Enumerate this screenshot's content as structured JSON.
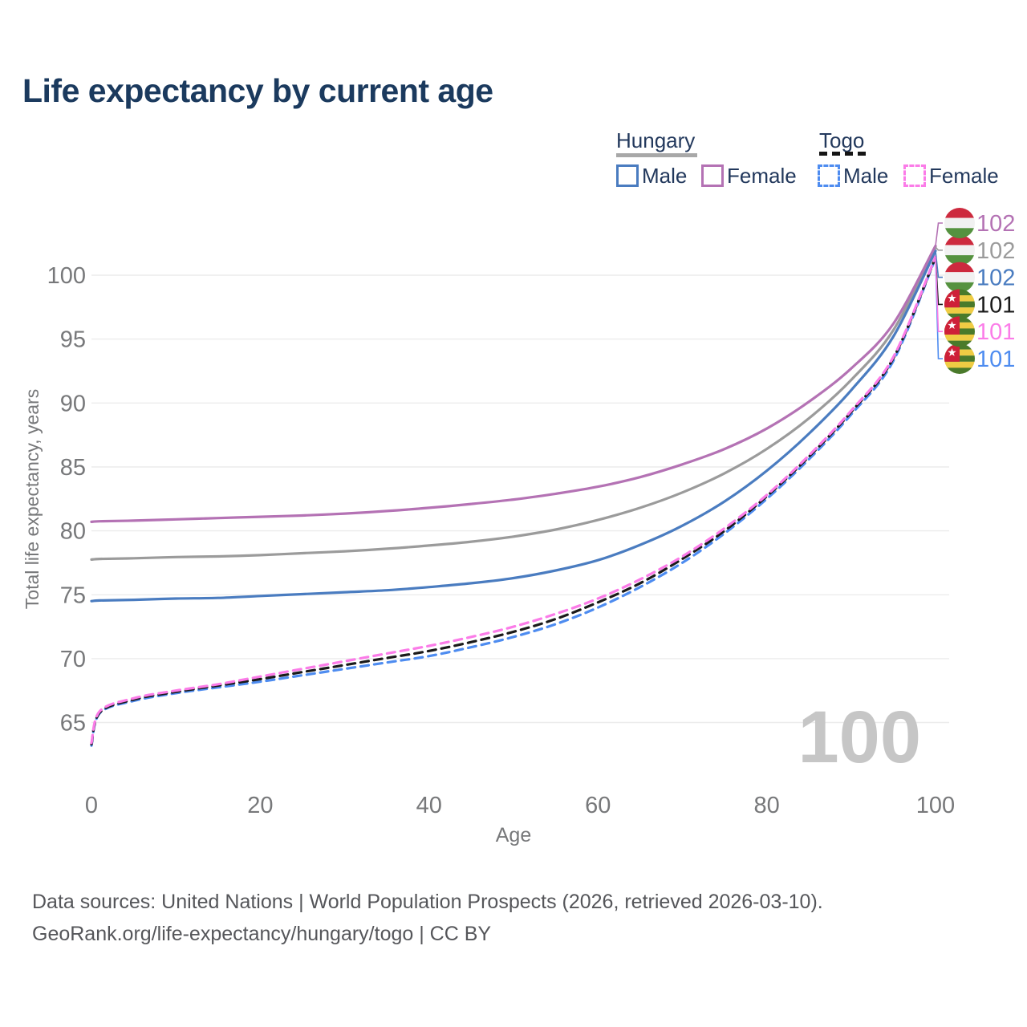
{
  "title": "Life expectancy by current age",
  "watermark": "100",
  "legend": {
    "groups": [
      {
        "name": "Hungary",
        "line_style": "solid",
        "underline_color": "#a8a8a8",
        "items": [
          {
            "label": "Male",
            "color": "#4a7cc0"
          },
          {
            "label": "Female",
            "color": "#b472b4"
          }
        ]
      },
      {
        "name": "Togo",
        "line_style": "dashed",
        "underline_color": "#151515",
        "items": [
          {
            "label": "Male",
            "color": "#4e8cf0"
          },
          {
            "label": "Female",
            "color": "#fb7ce8"
          }
        ]
      }
    ]
  },
  "footer": {
    "line1": "Data sources: United Nations | World Population Prospects (2026, retrieved 2026-03-10).",
    "line2": "GeoRank.org/life-expectancy/hungary/togo | CC BY"
  },
  "chart_data": {
    "type": "line",
    "title": "Life expectancy by current age",
    "xlabel": "Age",
    "ylabel": "Total life expectancy, years",
    "xlim": [
      0,
      100
    ],
    "ylim": [
      62,
      103
    ],
    "xticks": [
      0,
      20,
      40,
      60,
      80,
      100
    ],
    "yticks": [
      65,
      70,
      75,
      80,
      85,
      90,
      95,
      100
    ],
    "grid": "horizontal-only",
    "legend_position": "top-right",
    "ages": [
      0,
      1,
      5,
      10,
      15,
      20,
      25,
      30,
      35,
      40,
      45,
      50,
      55,
      60,
      65,
      70,
      75,
      80,
      85,
      90,
      95,
      100
    ],
    "series": [
      {
        "name": "Hungary Both sexes",
        "country": "Hungary",
        "sex": "Both",
        "color": "#9b9b9b",
        "dash": "solid",
        "flag": "hungary",
        "label_slot": 1,
        "end_label": "102",
        "values": [
          77.75,
          77.8,
          77.85,
          77.95,
          78.0,
          78.1,
          78.25,
          78.4,
          78.6,
          78.85,
          79.15,
          79.55,
          80.1,
          80.85,
          81.8,
          83.0,
          84.5,
          86.4,
          88.8,
          91.8,
          95.7,
          102.2
        ]
      },
      {
        "name": "Hungary Male",
        "country": "Hungary",
        "sex": "Male",
        "color": "#4a7cc0",
        "dash": "solid",
        "flag": "hungary",
        "label_slot": 2,
        "end_label": "102",
        "values": [
          74.5,
          74.55,
          74.6,
          74.7,
          74.75,
          74.9,
          75.05,
          75.2,
          75.35,
          75.6,
          75.9,
          76.3,
          76.9,
          77.7,
          78.9,
          80.4,
          82.3,
          84.7,
          87.6,
          91.0,
          95.2,
          101.9
        ]
      },
      {
        "name": "Hungary Female",
        "country": "Hungary",
        "sex": "Female",
        "color": "#b472b4",
        "dash": "solid",
        "flag": "hungary",
        "label_slot": 0,
        "end_label": "102",
        "values": [
          80.7,
          80.75,
          80.8,
          80.9,
          81.0,
          81.1,
          81.2,
          81.35,
          81.55,
          81.8,
          82.1,
          82.45,
          82.9,
          83.45,
          84.2,
          85.2,
          86.4,
          88.0,
          90.1,
          92.7,
          96.2,
          102.3
        ]
      },
      {
        "name": "Togo Male",
        "country": "Togo",
        "sex": "Male",
        "color": "#4e8cf0",
        "dash": "dashed",
        "flag": "togo",
        "label_slot": 5,
        "end_label": "101",
        "values": [
          63.2,
          65.75,
          66.7,
          67.3,
          67.75,
          68.2,
          68.7,
          69.2,
          69.7,
          70.2,
          70.9,
          71.7,
          72.7,
          74.0,
          75.6,
          77.5,
          79.8,
          82.5,
          85.6,
          89.1,
          93.3,
          101.35
        ]
      },
      {
        "name": "Togo Both sexes",
        "country": "Togo",
        "sex": "Both",
        "color": "#1a1a1a",
        "dash": "dashed",
        "flag": "togo",
        "label_slot": 3,
        "end_label": "101",
        "values": [
          63.3,
          65.8,
          66.8,
          67.4,
          67.9,
          68.4,
          68.95,
          69.5,
          70.05,
          70.6,
          71.3,
          72.1,
          73.1,
          74.4,
          75.9,
          77.8,
          80.0,
          82.7,
          85.8,
          89.3,
          93.5,
          101.4
        ]
      },
      {
        "name": "Togo Female",
        "country": "Togo",
        "sex": "Female",
        "color": "#fb7ce8",
        "dash": "dashed",
        "flag": "togo",
        "label_slot": 4,
        "end_label": "101",
        "values": [
          63.4,
          65.9,
          66.9,
          67.5,
          68.0,
          68.6,
          69.2,
          69.8,
          70.4,
          71.0,
          71.7,
          72.5,
          73.5,
          74.7,
          76.2,
          78.0,
          80.2,
          82.8,
          85.9,
          89.4,
          93.6,
          101.45
        ]
      }
    ],
    "flag_colors": {
      "hungary": [
        "#cd2a3e",
        "#f1f1f1",
        "#55923f"
      ],
      "togo": {
        "green": "#4a7a2b",
        "yellow": "#efcc44",
        "red": "#ce2038",
        "star": "#ffffff"
      }
    }
  }
}
